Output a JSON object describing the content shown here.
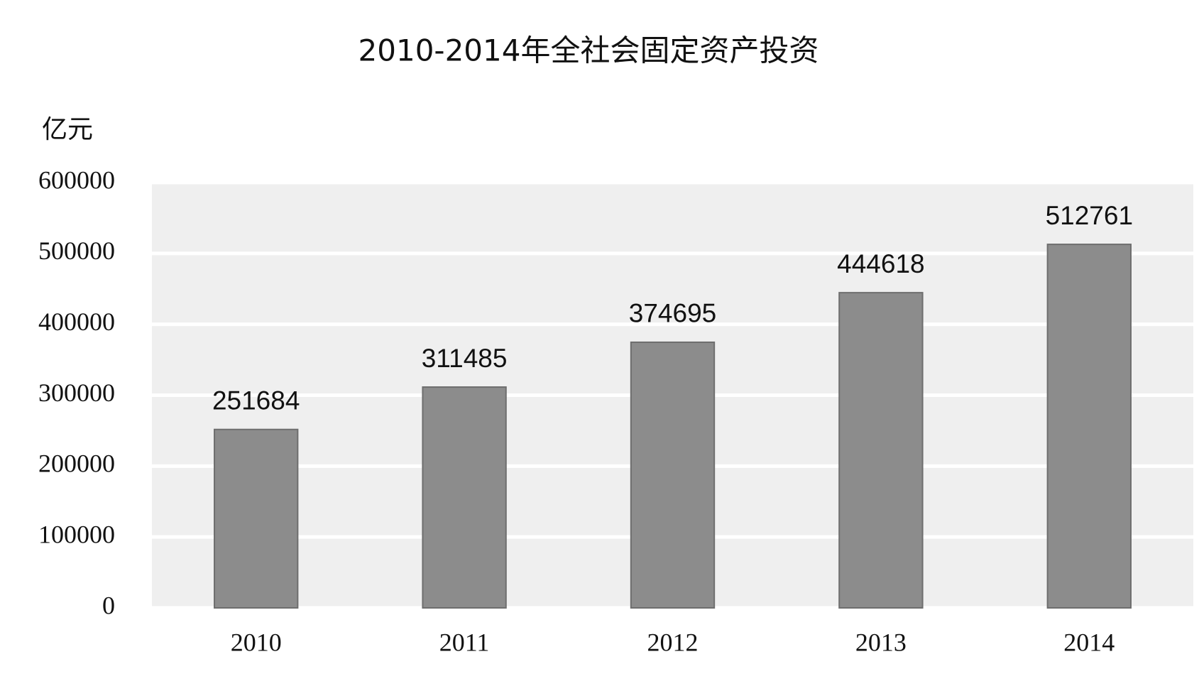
{
  "chart_data": {
    "type": "bar",
    "title": "2010-2014年全社会固定资产投资",
    "y_axis_label": "亿元",
    "categories": [
      "2010",
      "2011",
      "2012",
      "2013",
      "2014"
    ],
    "values": [
      251684,
      311485,
      374695,
      444618,
      512761
    ],
    "color": "#8c8c8c",
    "ylim": [
      0,
      600000
    ],
    "yticks": [
      0,
      100000,
      200000,
      300000,
      400000,
      500000,
      600000
    ],
    "grid": true
  }
}
